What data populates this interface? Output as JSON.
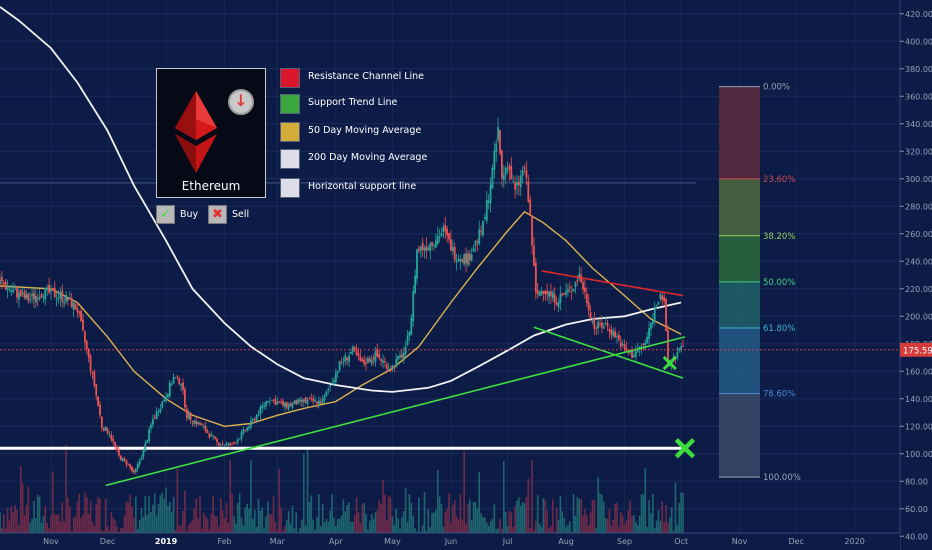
{
  "chart_data": {
    "type": "candlestick",
    "title": "",
    "price_axis": {
      "ticks": [
        "420.00",
        "400.00",
        "380.00",
        "360.00",
        "340.00",
        "320.00",
        "300.00",
        "280.00",
        "260.00",
        "240.00",
        "220.00",
        "200.00",
        "180.00",
        "160.00",
        "140.00",
        "120.00",
        "100.00",
        "80.00",
        "60.00",
        "40.00"
      ],
      "range": [
        30,
        430
      ],
      "current_price": 175.59,
      "current_price_label": "175.59"
    },
    "time_axis": {
      "ticks": [
        "Nov",
        "Dec",
        "2019",
        "Feb",
        "Mar",
        "Apr",
        "May",
        "Jun",
        "Jul",
        "Aug",
        "Sep",
        "Oct",
        "Nov",
        "Dec",
        "2020"
      ],
      "range": [
        "2018-10-05",
        "2020-01-25"
      ]
    },
    "price_path": [
      [
        "2018-10-05",
        225
      ],
      [
        "2018-10-12",
        218
      ],
      [
        "2018-10-20",
        212
      ],
      [
        "2018-10-28",
        218
      ],
      [
        "2018-11-05",
        215
      ],
      [
        "2018-11-10",
        212
      ],
      [
        "2018-11-15",
        205
      ],
      [
        "2018-11-20",
        175
      ],
      [
        "2018-11-24",
        150
      ],
      [
        "2018-11-28",
        120
      ],
      [
        "2018-12-02",
        115
      ],
      [
        "2018-12-07",
        98
      ],
      [
        "2018-12-12",
        92
      ],
      [
        "2018-12-15",
        85
      ],
      [
        "2018-12-20",
        102
      ],
      [
        "2018-12-25",
        125
      ],
      [
        "2018-12-31",
        140
      ],
      [
        "2019-01-05",
        155
      ],
      [
        "2019-01-09",
        152
      ],
      [
        "2019-01-12",
        128
      ],
      [
        "2019-01-20",
        120
      ],
      [
        "2019-01-28",
        108
      ],
      [
        "2019-02-05",
        106
      ],
      [
        "2019-02-15",
        122
      ],
      [
        "2019-02-24",
        140
      ],
      [
        "2019-03-05",
        135
      ],
      [
        "2019-03-15",
        138
      ],
      [
        "2019-03-25",
        138
      ],
      [
        "2019-04-03",
        165
      ],
      [
        "2019-04-10",
        175
      ],
      [
        "2019-04-15",
        165
      ],
      [
        "2019-04-22",
        172
      ],
      [
        "2019-04-30",
        162
      ],
      [
        "2019-05-08",
        175
      ],
      [
        "2019-05-11",
        200
      ],
      [
        "2019-05-14",
        248
      ],
      [
        "2019-05-20",
        252
      ],
      [
        "2019-05-28",
        262
      ],
      [
        "2019-06-03",
        245
      ],
      [
        "2019-06-10",
        242
      ],
      [
        "2019-06-18",
        265
      ],
      [
        "2019-06-23",
        305
      ],
      [
        "2019-06-26",
        335
      ],
      [
        "2019-06-28",
        300
      ],
      [
        "2019-07-01",
        312
      ],
      [
        "2019-07-05",
        290
      ],
      [
        "2019-07-10",
        308
      ],
      [
        "2019-07-13",
        272
      ],
      [
        "2019-07-16",
        215
      ],
      [
        "2019-07-20",
        220
      ],
      [
        "2019-07-27",
        212
      ],
      [
        "2019-08-04",
        220
      ],
      [
        "2019-08-08",
        230
      ],
      [
        "2019-08-12",
        212
      ],
      [
        "2019-08-16",
        192
      ],
      [
        "2019-08-22",
        194
      ],
      [
        "2019-08-28",
        185
      ],
      [
        "2019-09-01",
        175
      ],
      [
        "2019-09-05",
        172
      ],
      [
        "2019-09-12",
        180
      ],
      [
        "2019-09-18",
        210
      ],
      [
        "2019-09-20",
        218
      ],
      [
        "2019-09-22",
        208
      ],
      [
        "2019-09-24",
        165
      ],
      [
        "2019-09-26",
        168
      ],
      [
        "2019-09-30",
        175
      ],
      [
        "2019-10-02",
        176
      ]
    ],
    "series": [
      {
        "name": "50 Day Moving Average",
        "color": "#e0b24c",
        "values": [
          [
            "2018-10-05",
            222
          ],
          [
            "2018-11-01",
            220
          ],
          [
            "2018-11-15",
            210
          ],
          [
            "2018-12-01",
            185
          ],
          [
            "2018-12-15",
            160
          ],
          [
            "2019-01-01",
            140
          ],
          [
            "2019-01-15",
            128
          ],
          [
            "2019-02-01",
            120
          ],
          [
            "2019-02-15",
            122
          ],
          [
            "2019-03-01",
            128
          ],
          [
            "2019-03-15",
            133
          ],
          [
            "2019-04-01",
            138
          ],
          [
            "2019-04-15",
            150
          ],
          [
            "2019-05-01",
            162
          ],
          [
            "2019-05-15",
            178
          ],
          [
            "2019-06-01",
            210
          ],
          [
            "2019-06-15",
            235
          ],
          [
            "2019-07-01",
            262
          ],
          [
            "2019-07-10",
            276
          ],
          [
            "2019-07-20",
            268
          ],
          [
            "2019-08-01",
            255
          ],
          [
            "2019-08-15",
            235
          ],
          [
            "2019-09-01",
            215
          ],
          [
            "2019-09-15",
            198
          ],
          [
            "2019-10-01",
            187
          ]
        ]
      },
      {
        "name": "200 Day Moving Average",
        "color": "#f2f2f2",
        "values": [
          [
            "2018-10-05",
            425
          ],
          [
            "2018-10-15",
            415
          ],
          [
            "2018-11-01",
            395
          ],
          [
            "2018-11-15",
            370
          ],
          [
            "2018-12-01",
            335
          ],
          [
            "2018-12-15",
            295
          ],
          [
            "2019-01-01",
            255
          ],
          [
            "2019-01-15",
            220
          ],
          [
            "2019-02-01",
            195
          ],
          [
            "2019-02-15",
            178
          ],
          [
            "2019-03-01",
            165
          ],
          [
            "2019-03-15",
            155
          ],
          [
            "2019-04-01",
            150
          ],
          [
            "2019-04-20",
            146
          ],
          [
            "2019-05-01",
            145
          ],
          [
            "2019-05-20",
            148
          ],
          [
            "2019-06-01",
            153
          ],
          [
            "2019-06-15",
            163
          ],
          [
            "2019-07-01",
            175
          ],
          [
            "2019-07-15",
            186
          ],
          [
            "2019-08-01",
            194
          ],
          [
            "2019-08-15",
            198
          ],
          [
            "2019-09-01",
            200
          ],
          [
            "2019-09-15",
            205
          ],
          [
            "2019-10-01",
            210
          ]
        ]
      }
    ],
    "trend_lines": [
      {
        "name": "Resistance Channel Line",
        "color": "#e32a2a",
        "from": [
          "2019-07-19",
          233
        ],
        "to": [
          "2019-10-02",
          215
        ]
      },
      {
        "name": "Support Trend Line",
        "color": "#3fe03f",
        "from": [
          "2018-11-30",
          77
        ],
        "to": [
          "2019-10-03",
          185
        ]
      },
      {
        "name": "Support Trend Line",
        "color": "#3fe03f",
        "from": [
          "2019-07-15",
          192
        ],
        "to": [
          "2019-10-02",
          155
        ]
      },
      {
        "name": "Horizontal support line",
        "color": "#ffffff",
        "from": [
          "2018-10-05",
          104
        ],
        "to": [
          "2019-10-03",
          104
        ]
      },
      {
        "name": "Horizontal resistance",
        "color": "#3a4a78",
        "from": [
          "2018-10-05",
          297
        ],
        "to": [
          "2019-10-09",
          297
        ]
      }
    ],
    "fibonacci": {
      "high": 367,
      "low": 83,
      "levels": [
        {
          "label": "0.00%",
          "label_color": "#9aa0b5",
          "color": "#5d2a3e"
        },
        {
          "label": "23.60%",
          "label_color": "#d04848",
          "color": "#4d6b3f"
        },
        {
          "label": "38.20%",
          "label_color": "#9ad05a",
          "color": "#2b6a3a"
        },
        {
          "label": "50.00%",
          "label_color": "#3fd08a",
          "color": "#22626a"
        },
        {
          "label": "61.80%",
          "label_color": "#3fb0d0",
          "color": "#245a86"
        },
        {
          "label": "78.60%",
          "label_color": "#4a8ad0",
          "color": "#3a4a6a"
        },
        {
          "label": "100.00%",
          "label_color": "#9aa0b5",
          "color": ""
        }
      ]
    },
    "signals": [
      {
        "type": "Sell",
        "date": "2019-10-03",
        "price": 104
      },
      {
        "type": "Buy",
        "date": "2019-09-25",
        "price": 166
      }
    ]
  },
  "legend": {
    "coin_name": "Ethereum",
    "items": [
      {
        "label": "Resistance Channel Line",
        "color": "#d9162b"
      },
      {
        "label": "Support Trend Line",
        "color": "#3ba83f"
      },
      {
        "label": "50 Day Moving Average",
        "color": "#d4ac3a"
      },
      {
        "label": "200 Day Moving Average",
        "color": "#dcdde6"
      },
      {
        "label": "Horizontal support line",
        "color": "#dcdde6"
      }
    ],
    "buy_label": "Buy",
    "sell_label": "Sell",
    "buy_icon": "buy-check-icon",
    "sell_icon": "sell-x-icon",
    "coin_icon": "ethereum-logo-icon",
    "trend_icon": "down-arrow-icon"
  },
  "colors": {
    "background": "#0c1c47",
    "candle_up": "#26a69a",
    "candle_down": "#ef5350",
    "signal_green": "#3ddc3d",
    "signal_red": "#e83030"
  }
}
